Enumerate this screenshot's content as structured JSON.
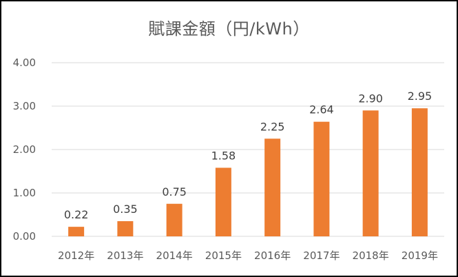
{
  "chart_data": {
    "type": "bar",
    "title": "賦課金額（円/kWh）",
    "xlabel": "",
    "ylabel": "",
    "categories": [
      "2012年",
      "2013年",
      "2014年",
      "2015年",
      "2016年",
      "2017年",
      "2018年",
      "2019年"
    ],
    "values": [
      0.22,
      0.35,
      0.75,
      1.58,
      2.25,
      2.64,
      2.9,
      2.95
    ],
    "data_labels": [
      "0.22",
      "0.35",
      "0.75",
      "1.58",
      "2.25",
      "2.64",
      "2.90",
      "2.95"
    ],
    "y_ticks": [
      "0.00",
      "1.00",
      "2.00",
      "3.00",
      "4.00"
    ],
    "ylim": [
      0,
      4
    ],
    "grid": true,
    "legend": "none",
    "bar_color": "#ED7D31",
    "grid_color": "#D9D9D9"
  }
}
